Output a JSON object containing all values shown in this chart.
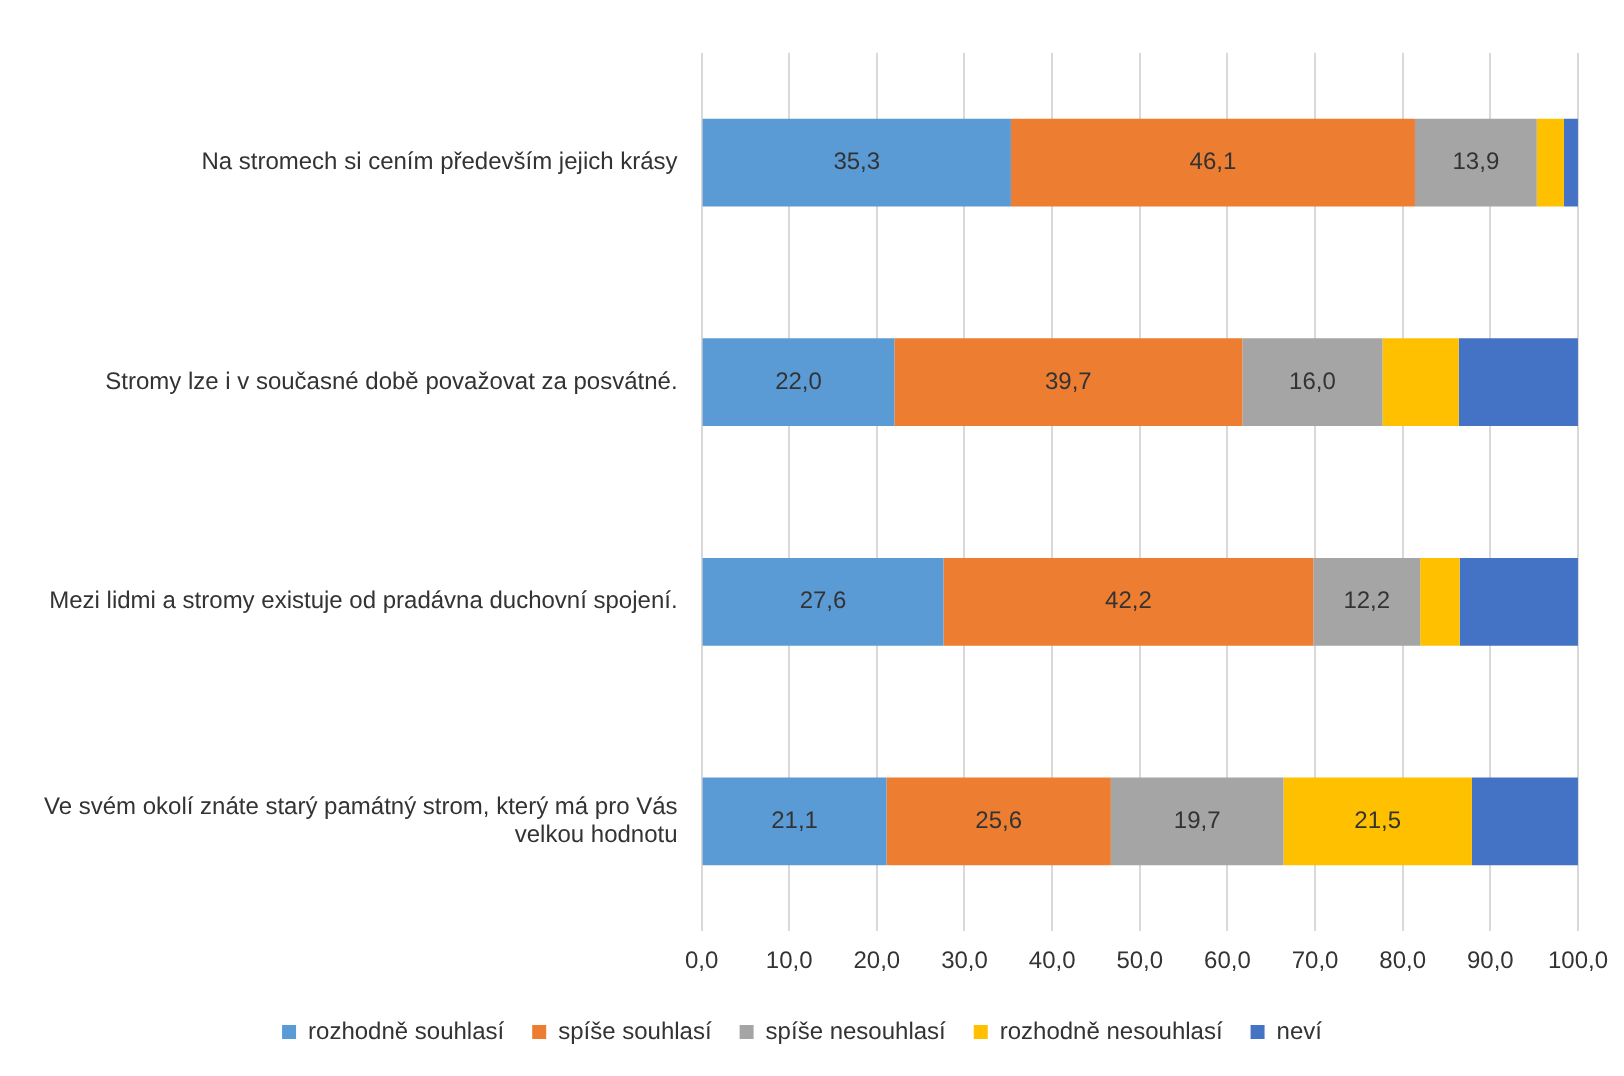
{
  "chart_data": {
    "type": "bar",
    "orientation": "horizontal",
    "stacked": true,
    "categories": [
      "Na stromech si cením především jejich krásy",
      "Stromy lze i v současné době považovat za posvátné.",
      "Mezi lidmi a stromy existuje od pradávna duchovní spojení.",
      "Ve svém okolí znáte starý památný strom, který má pro Vás velkou hodnotu"
    ],
    "series": [
      {
        "name": "rozhodně souhlasí",
        "color": "#5b9bd5",
        "values": [
          35.3,
          22.0,
          27.6,
          21.1
        ],
        "value_labels": [
          "35,3",
          "22,0",
          "27,6",
          "21,1"
        ]
      },
      {
        "name": "spíše souhlasí",
        "color": "#ed7d31",
        "values": [
          46.1,
          39.7,
          42.2,
          25.6
        ],
        "value_labels": [
          "46,1",
          "39,7",
          "42,2",
          "25,6"
        ]
      },
      {
        "name": "spíše nesouhlasí",
        "color": "#a5a5a5",
        "values": [
          13.9,
          16.0,
          12.2,
          19.7
        ],
        "value_labels": [
          "13,9",
          "16,0",
          "12,2",
          "19,7"
        ]
      },
      {
        "name": "rozhodně nesouhlasí",
        "color": "#ffc000",
        "values": [
          3.1,
          8.7,
          4.5,
          21.5
        ],
        "value_labels": [
          null,
          null,
          null,
          "21,5"
        ]
      },
      {
        "name": "neví",
        "color": "#4472c4",
        "values": [
          1.6,
          13.6,
          13.5,
          12.1
        ],
        "value_labels": [
          null,
          null,
          null,
          null
        ]
      }
    ],
    "xlim": [
      0,
      100
    ],
    "xticks": [
      {
        "value": 0,
        "label": "0,0"
      },
      {
        "value": 10,
        "label": "10,0"
      },
      {
        "value": 20,
        "label": "20,0"
      },
      {
        "value": 30,
        "label": "30,0"
      },
      {
        "value": 40,
        "label": "40,0"
      },
      {
        "value": 50,
        "label": "50,0"
      },
      {
        "value": 60,
        "label": "60,0"
      },
      {
        "value": 70,
        "label": "70,0"
      },
      {
        "value": 80,
        "label": "80,0"
      },
      {
        "value": 90,
        "label": "90,0"
      },
      {
        "value": 100,
        "label": "100,0"
      }
    ],
    "grid": "x",
    "legend": "bottom"
  }
}
